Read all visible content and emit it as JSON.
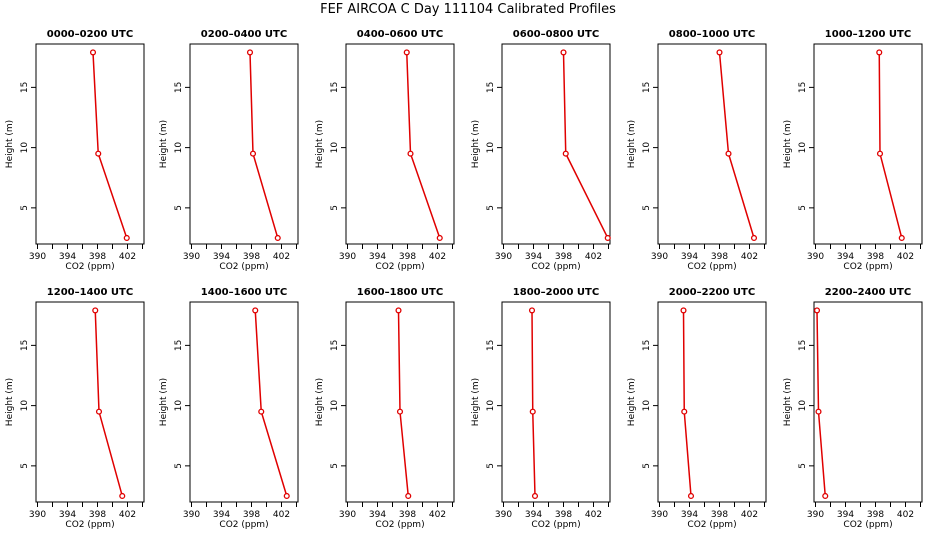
{
  "window": {
    "title": "FEF AIRCOA C  Day 111104  Calibrated Profiles"
  },
  "colors": {
    "line": "#e00000",
    "axis": "#000000",
    "background": "#ffffff"
  },
  "chart_data": {
    "type": "line",
    "title": "FEF AIRCOA C  Day 111104  Calibrated Profiles",
    "xlabel": "CO2 (ppm)",
    "ylabel": "Height (m)",
    "xlim": [
      389.8,
      404.2
    ],
    "ylim": [
      2.0,
      18.6
    ],
    "xticks": [
      390,
      394,
      398,
      402
    ],
    "xticks_minor": [
      392,
      396,
      400,
      404
    ],
    "yticks": [
      5,
      10,
      15
    ],
    "heights": [
      17.9,
      9.5,
      2.5
    ],
    "panels": [
      {
        "title": "0000–0200 UTC",
        "values": [
          397.4,
          398.1,
          401.9
        ]
      },
      {
        "title": "0200–0400 UTC",
        "values": [
          397.8,
          398.2,
          401.5
        ]
      },
      {
        "title": "0400–0600 UTC",
        "values": [
          397.9,
          398.4,
          402.3
        ]
      },
      {
        "title": "0600–0800 UTC",
        "values": [
          398.0,
          398.3,
          403.9
        ]
      },
      {
        "title": "0800–1000 UTC",
        "values": [
          398.0,
          399.2,
          402.6
        ]
      },
      {
        "title": "1000–1200 UTC",
        "values": [
          398.5,
          398.6,
          401.5
        ]
      },
      {
        "title": "1200–1400 UTC",
        "values": [
          397.7,
          398.2,
          401.3
        ]
      },
      {
        "title": "1400–1600 UTC",
        "values": [
          398.5,
          399.3,
          402.7
        ]
      },
      {
        "title": "1600–1800 UTC",
        "values": [
          396.8,
          397.0,
          398.1
        ]
      },
      {
        "title": "1800–2000 UTC",
        "values": [
          393.8,
          393.9,
          394.2
        ]
      },
      {
        "title": "2000–2200 UTC",
        "values": [
          393.2,
          393.3,
          394.2
        ]
      },
      {
        "title": "2200–2400 UTC",
        "values": [
          390.2,
          390.4,
          391.3
        ]
      }
    ]
  }
}
